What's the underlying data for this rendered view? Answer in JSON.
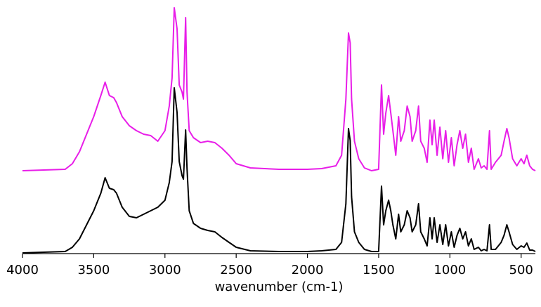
{
  "chart_data": {
    "type": "line",
    "xlabel": "wavenumber (cm-1)",
    "x": [
      4000,
      3700,
      3650,
      3600,
      3500,
      3450,
      3420,
      3390,
      3360,
      3340,
      3300,
      3250,
      3200,
      3150,
      3100,
      3050,
      3000,
      2970,
      2950,
      2935,
      2915,
      2900,
      2880,
      2870,
      2855,
      2845,
      2830,
      2800,
      2750,
      2700,
      2650,
      2600,
      2550,
      2500,
      2400,
      2200,
      2000,
      1900,
      1800,
      1760,
      1730,
      1712,
      1700,
      1690,
      1670,
      1640,
      1600,
      1550,
      1500,
      1480,
      1465,
      1450,
      1430,
      1415,
      1400,
      1380,
      1360,
      1345,
      1320,
      1300,
      1280,
      1265,
      1240,
      1220,
      1205,
      1180,
      1160,
      1140,
      1125,
      1110,
      1090,
      1070,
      1050,
      1030,
      1010,
      990,
      970,
      950,
      930,
      910,
      890,
      870,
      850,
      830,
      800,
      780,
      760,
      740,
      722,
      710,
      680,
      660,
      640,
      620,
      600,
      585,
      560,
      530,
      500,
      480,
      460,
      440,
      420,
      400
    ],
    "series": [
      {
        "color": "#e81ee8",
        "values": [
          118,
          120,
          128,
          145,
          195,
          225,
          244,
          225,
          222,
          215,
          195,
          182,
          175,
          170,
          168,
          160,
          175,
          210,
          250,
          350,
          320,
          240,
          230,
          220,
          336,
          230,
          175,
          165,
          158,
          160,
          158,
          150,
          140,
          128,
          122,
          120,
          120,
          121,
          125,
          140,
          220,
          314,
          300,
          220,
          160,
          135,
          122,
          118,
          120,
          240,
          170,
          200,
          225,
          200,
          175,
          140,
          195,
          160,
          175,
          210,
          195,
          160,
          175,
          210,
          160,
          150,
          130,
          190,
          155,
          190,
          140,
          180,
          135,
          175,
          130,
          165,
          125,
          155,
          175,
          150,
          170,
          130,
          150,
          120,
          135,
          122,
          125,
          120,
          175,
          120,
          130,
          135,
          140,
          160,
          178,
          165,
          135,
          125,
          135,
          128,
          140,
          125,
          120,
          118
        ]
      },
      {
        "color": "#000000",
        "values": [
          1,
          3,
          9,
          21,
          61,
          86,
          108,
          93,
          91,
          86,
          66,
          53,
          51,
          56,
          61,
          66,
          76,
          101,
          131,
          236,
          201,
          131,
          111,
          106,
          176,
          121,
          61,
          43,
          36,
          33,
          31,
          23,
          16,
          9,
          4,
          3,
          3,
          4,
          6,
          16,
          71,
          178,
          161,
          81,
          31,
          16,
          6,
          3,
          3,
          96,
          41,
          61,
          76,
          61,
          41,
          21,
          56,
          31,
          41,
          61,
          51,
          31,
          41,
          71,
          31,
          21,
          11,
          51,
          21,
          51,
          16,
          41,
          13,
          41,
          11,
          31,
          9,
          26,
          36,
          21,
          31,
          11,
          21,
          6,
          9,
          4,
          6,
          4,
          41,
          6,
          6,
          11,
          16,
          26,
          41,
          31,
          13,
          6,
          11,
          9,
          15,
          5,
          5,
          3
        ]
      }
    ],
    "xlim": [
      4000,
      400
    ],
    "xticks": [
      4000,
      3500,
      3000,
      2500,
      2000,
      1500,
      1000,
      500
    ],
    "ylim": [
      0,
      361
    ]
  }
}
